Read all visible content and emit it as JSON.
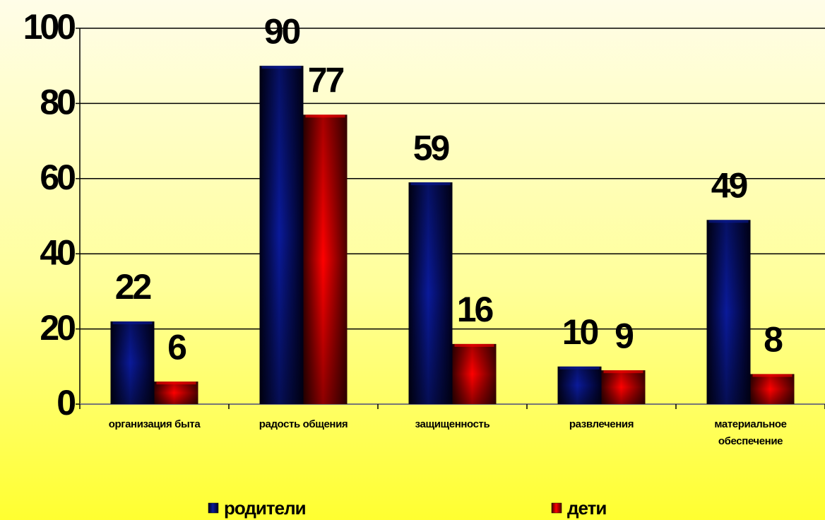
{
  "chart_data": {
    "type": "bar",
    "categories": [
      "организация быта",
      "радость общения",
      "защищенность",
      "развлечения",
      "материальное обеспечение"
    ],
    "series": [
      {
        "name": "родители",
        "color": "#0a1a9a",
        "values": [
          22,
          90,
          59,
          10,
          49
        ]
      },
      {
        "name": "дети",
        "color": "#ff0000",
        "values": [
          6,
          77,
          16,
          9,
          8
        ]
      }
    ],
    "ylim": [
      0,
      100
    ],
    "yticks": [
      0,
      20,
      40,
      60,
      80,
      100
    ],
    "grid": true,
    "legend": "bottom"
  }
}
